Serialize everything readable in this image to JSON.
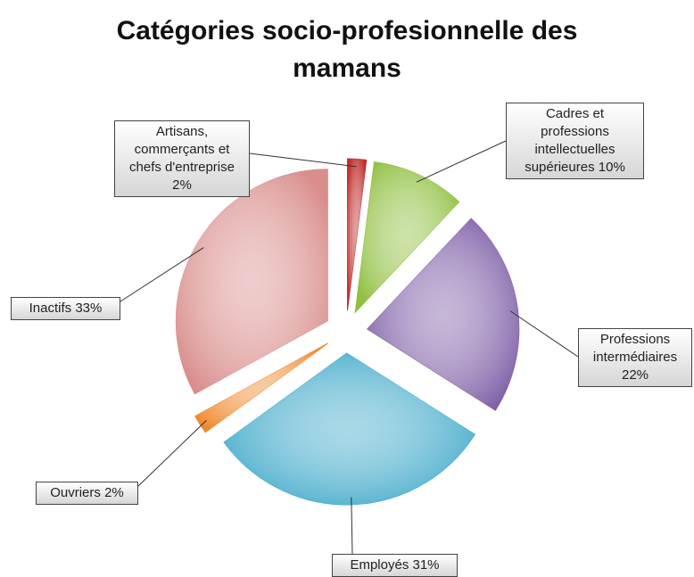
{
  "chart_data": {
    "type": "pie",
    "title": "Catégories socio-profesionnelle des mamans",
    "categories": [
      "Artisans, commerçants et chefs d'entreprise",
      "Cadres et professions intellectuelles supérieures",
      "Professions intermédiaires",
      "Employés",
      "Ouvriers",
      "Inactifs"
    ],
    "values": [
      2,
      10,
      22,
      31,
      2,
      33
    ],
    "value_labels": [
      "2%",
      "10%",
      "22%",
      "31%",
      "2%",
      "33%"
    ],
    "colors": [
      "#c0302e",
      "#8fbf3f",
      "#7e5ea6",
      "#3fa9c9",
      "#f08a2e",
      "#d98e8c"
    ]
  }
}
